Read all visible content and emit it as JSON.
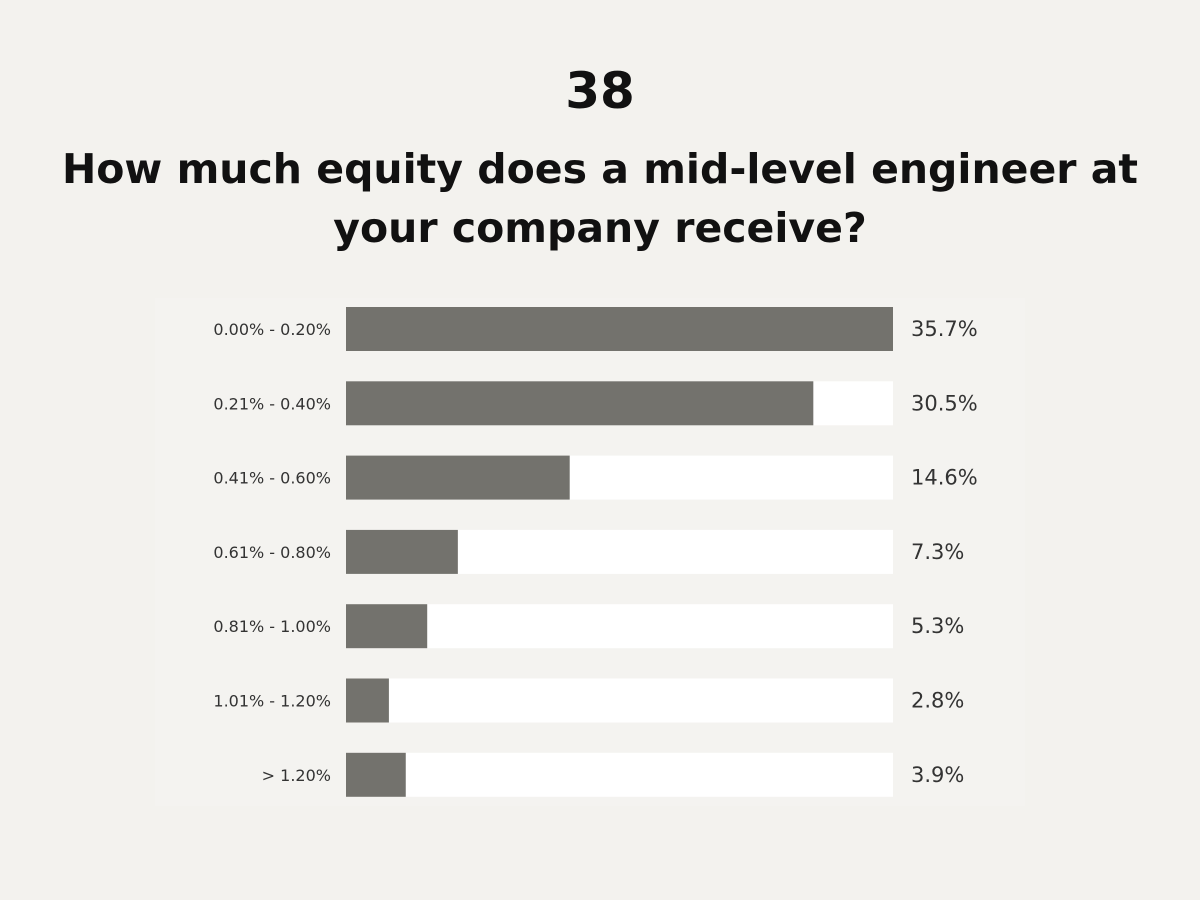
{
  "question_number": "38",
  "title": "How much equity does a mid-level engineer at your company receive?",
  "colors": {
    "background": "#f3f2ee",
    "bar_fill": "#73726d",
    "bar_track": "#ffffff",
    "text": "#111111",
    "label_text": "#333333"
  },
  "chart_data": {
    "type": "bar",
    "orientation": "horizontal",
    "categories": [
      "0.00% - 0.20%",
      "0.21% - 0.40%",
      "0.41% - 0.60%",
      "0.61% - 0.80%",
      "0.81% - 1.00%",
      "1.01% - 1.20%",
      "> 1.20%"
    ],
    "values": [
      35.7,
      30.5,
      14.6,
      7.3,
      5.3,
      2.8,
      3.9
    ],
    "value_labels": [
      "35.7%",
      "30.5%",
      "14.6%",
      "7.3%",
      "5.3%",
      "2.8%",
      "3.9%"
    ],
    "xlim": [
      0,
      35.7
    ],
    "unit": "%",
    "grid": false,
    "legend": "none"
  }
}
